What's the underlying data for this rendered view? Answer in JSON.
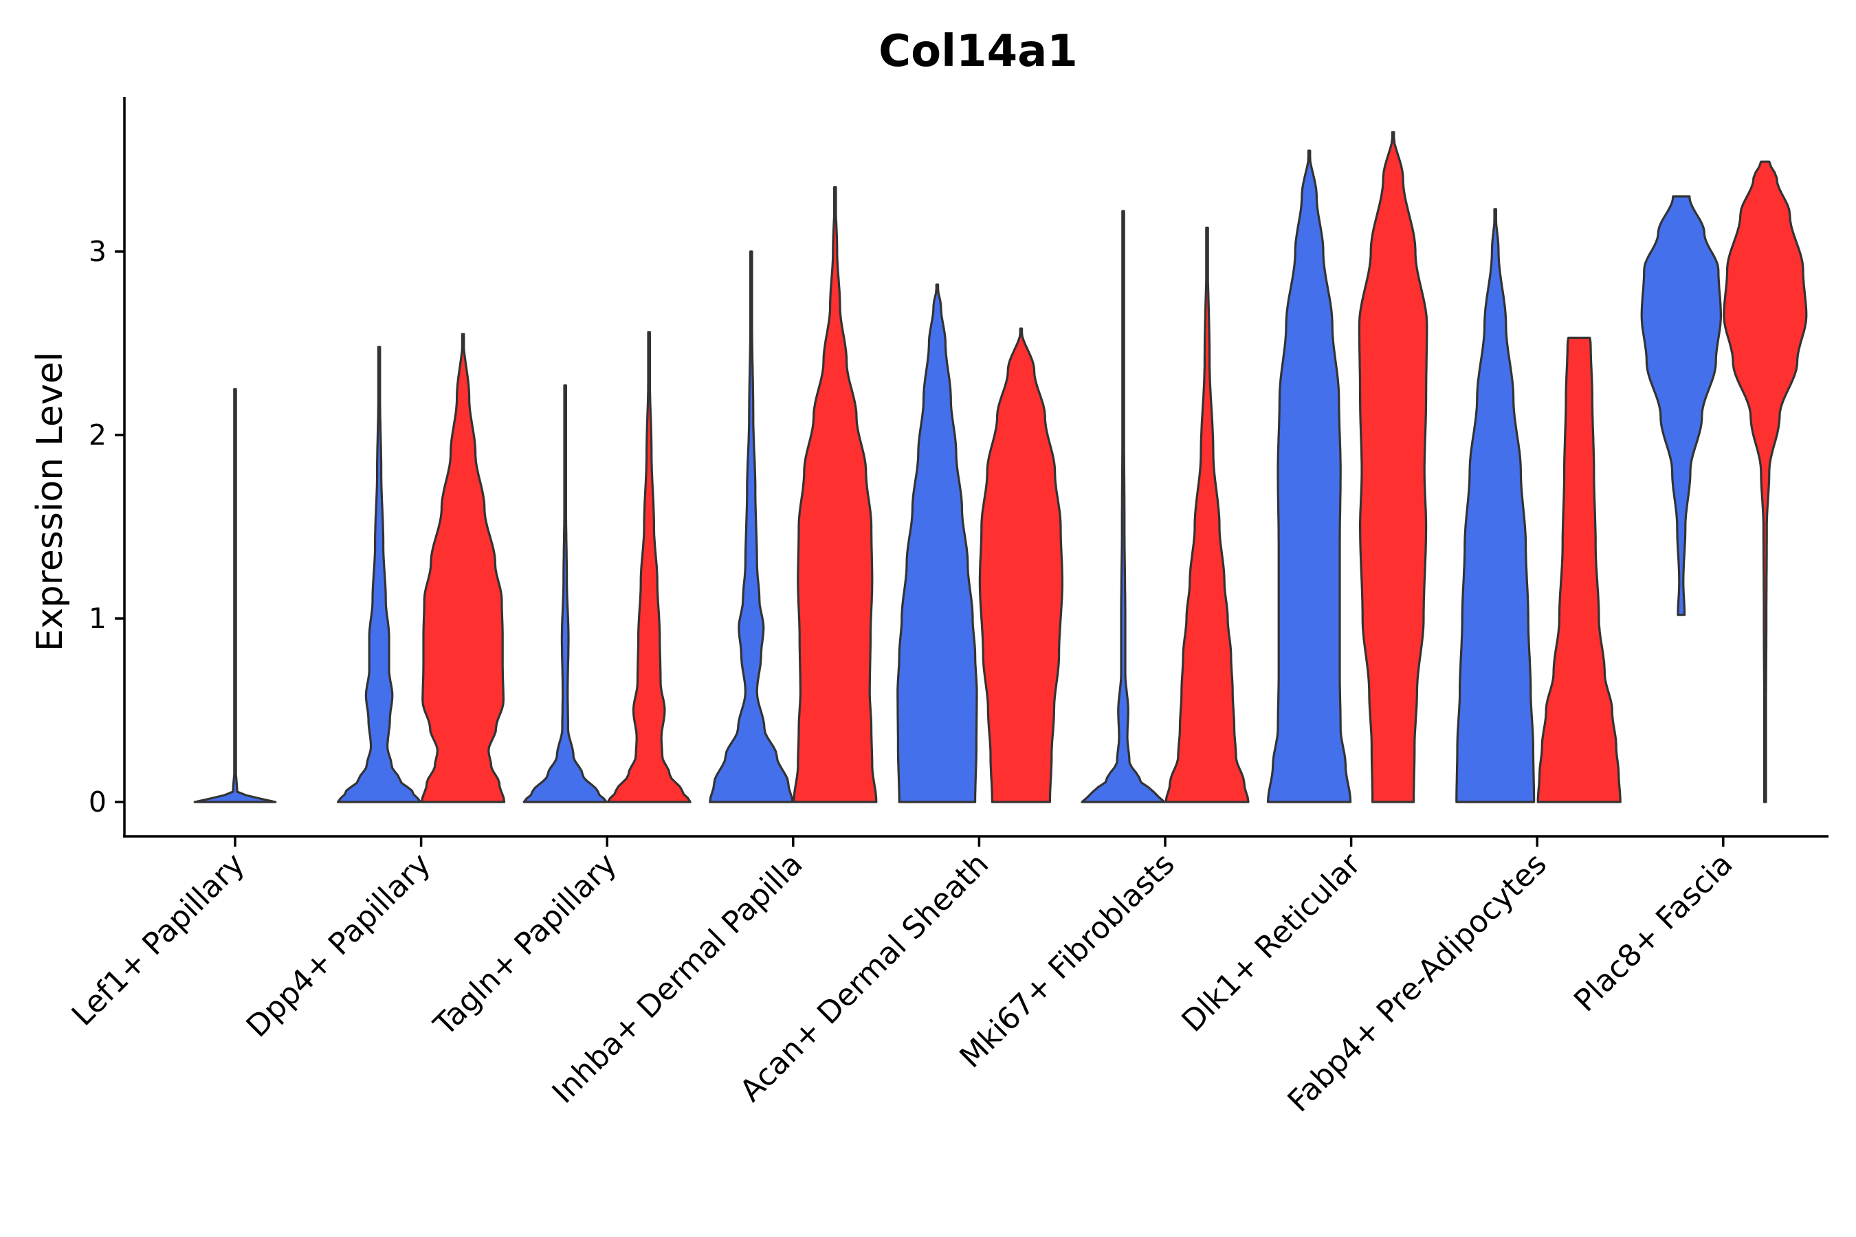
{
  "chart_data": {
    "type": "violin",
    "title": "Col14a1",
    "xlabel": "",
    "ylabel": "Expression Level",
    "ylim": [
      -0.18,
      3.85
    ],
    "yticks": [
      0,
      1,
      2,
      3
    ],
    "legend": "none",
    "grid": false,
    "group_colors": [
      "#4570EB",
      "#FF3030"
    ],
    "categories": [
      "Lef1+ Papillary",
      "Dpp4+ Papillary",
      "Tagln+ Papillary",
      "Inhba+ Dermal Papilla",
      "Acan+ Dermal Sheath",
      "Mki67+ Fibroblasts",
      "Dlk1+ Reticular",
      "Fabp4+ Pre-Adipocytes",
      "Plac8+ Fascia"
    ],
    "violins": [
      {
        "category": 0,
        "group": 0,
        "max": 2.25,
        "profile": [
          [
            0,
            0.98
          ],
          [
            0.02,
            0.6
          ],
          [
            0.05,
            0.05
          ],
          [
            0.2,
            0.01
          ],
          [
            0.6,
            0.008
          ],
          [
            1.0,
            0.005
          ],
          [
            1.6,
            0.004
          ],
          [
            2.25,
            0.002
          ]
        ]
      },
      {
        "category": 1,
        "group": 0,
        "max": 2.48,
        "profile": [
          [
            0,
            1.0
          ],
          [
            0.05,
            0.82
          ],
          [
            0.12,
            0.5
          ],
          [
            0.2,
            0.3
          ],
          [
            0.3,
            0.2
          ],
          [
            0.45,
            0.26
          ],
          [
            0.58,
            0.32
          ],
          [
            0.72,
            0.24
          ],
          [
            0.9,
            0.24
          ],
          [
            1.1,
            0.16
          ],
          [
            1.4,
            0.1
          ],
          [
            1.8,
            0.05
          ],
          [
            2.2,
            0.02
          ],
          [
            2.48,
            0.0
          ]
        ]
      },
      {
        "category": 1,
        "group": 1,
        "max": 2.55,
        "profile": [
          [
            0,
            1.0
          ],
          [
            0.1,
            0.88
          ],
          [
            0.2,
            0.68
          ],
          [
            0.28,
            0.62
          ],
          [
            0.4,
            0.8
          ],
          [
            0.55,
            0.98
          ],
          [
            0.75,
            0.96
          ],
          [
            0.9,
            0.96
          ],
          [
            1.1,
            0.94
          ],
          [
            1.3,
            0.78
          ],
          [
            1.6,
            0.52
          ],
          [
            1.9,
            0.3
          ],
          [
            2.2,
            0.15
          ],
          [
            2.55,
            0.0
          ]
        ]
      },
      {
        "category": 2,
        "group": 0,
        "max": 2.27,
        "profile": [
          [
            0,
            1.0
          ],
          [
            0.05,
            0.8
          ],
          [
            0.15,
            0.42
          ],
          [
            0.25,
            0.2
          ],
          [
            0.4,
            0.07
          ],
          [
            0.6,
            0.06
          ],
          [
            0.9,
            0.08
          ],
          [
            1.2,
            0.04
          ],
          [
            1.6,
            0.02
          ],
          [
            2.27,
            0.0
          ]
        ]
      },
      {
        "category": 2,
        "group": 1,
        "max": 2.56,
        "profile": [
          [
            0,
            1.0
          ],
          [
            0.06,
            0.8
          ],
          [
            0.15,
            0.5
          ],
          [
            0.25,
            0.32
          ],
          [
            0.35,
            0.3
          ],
          [
            0.5,
            0.38
          ],
          [
            0.65,
            0.28
          ],
          [
            0.9,
            0.26
          ],
          [
            1.2,
            0.2
          ],
          [
            1.5,
            0.12
          ],
          [
            1.9,
            0.06
          ],
          [
            2.3,
            0.02
          ],
          [
            2.56,
            0.0
          ]
        ]
      },
      {
        "category": 3,
        "group": 0,
        "max": 3.0,
        "profile": [
          [
            0,
            1.0
          ],
          [
            0.1,
            0.9
          ],
          [
            0.25,
            0.62
          ],
          [
            0.4,
            0.32
          ],
          [
            0.6,
            0.14
          ],
          [
            0.8,
            0.24
          ],
          [
            0.95,
            0.3
          ],
          [
            1.1,
            0.2
          ],
          [
            1.3,
            0.14
          ],
          [
            1.7,
            0.1
          ],
          [
            2.1,
            0.05
          ],
          [
            2.6,
            0.02
          ],
          [
            3.0,
            0.0
          ]
        ]
      },
      {
        "category": 3,
        "group": 1,
        "max": 3.35,
        "profile": [
          [
            0,
            1.0
          ],
          [
            0.2,
            0.9
          ],
          [
            0.4,
            0.88
          ],
          [
            0.6,
            0.84
          ],
          [
            0.9,
            0.86
          ],
          [
            1.2,
            0.9
          ],
          [
            1.5,
            0.88
          ],
          [
            1.8,
            0.75
          ],
          [
            2.1,
            0.52
          ],
          [
            2.4,
            0.28
          ],
          [
            2.7,
            0.12
          ],
          [
            3.0,
            0.05
          ],
          [
            3.35,
            0.0
          ]
        ]
      },
      {
        "category": 4,
        "group": 0,
        "max": 2.82,
        "profile": [
          [
            0,
            0.92
          ],
          [
            0.3,
            0.95
          ],
          [
            0.6,
            0.96
          ],
          [
            0.8,
            0.92
          ],
          [
            1.0,
            0.86
          ],
          [
            1.3,
            0.74
          ],
          [
            1.6,
            0.6
          ],
          [
            1.9,
            0.46
          ],
          [
            2.2,
            0.33
          ],
          [
            2.5,
            0.2
          ],
          [
            2.7,
            0.09
          ],
          [
            2.82,
            0.0
          ]
        ]
      },
      {
        "category": 4,
        "group": 1,
        "max": 2.58,
        "profile": [
          [
            0,
            0.7
          ],
          [
            0.25,
            0.74
          ],
          [
            0.5,
            0.8
          ],
          [
            0.8,
            0.92
          ],
          [
            1.2,
            1.0
          ],
          [
            1.5,
            0.96
          ],
          [
            1.8,
            0.82
          ],
          [
            2.1,
            0.58
          ],
          [
            2.35,
            0.32
          ],
          [
            2.58,
            0.0
          ]
        ]
      },
      {
        "category": 5,
        "group": 0,
        "max": 3.22,
        "profile": [
          [
            0,
            1.0
          ],
          [
            0.05,
            0.75
          ],
          [
            0.12,
            0.4
          ],
          [
            0.22,
            0.15
          ],
          [
            0.35,
            0.1
          ],
          [
            0.5,
            0.12
          ],
          [
            0.7,
            0.05
          ],
          [
            1.0,
            0.05
          ],
          [
            1.5,
            0.03
          ],
          [
            2.2,
            0.015
          ],
          [
            3.22,
            0.0
          ]
        ]
      },
      {
        "category": 5,
        "group": 1,
        "max": 3.13,
        "profile": [
          [
            0,
            1.0
          ],
          [
            0.1,
            0.9
          ],
          [
            0.25,
            0.7
          ],
          [
            0.4,
            0.66
          ],
          [
            0.6,
            0.62
          ],
          [
            0.8,
            0.58
          ],
          [
            1.0,
            0.5
          ],
          [
            1.2,
            0.42
          ],
          [
            1.5,
            0.3
          ],
          [
            1.9,
            0.15
          ],
          [
            2.4,
            0.06
          ],
          [
            3.13,
            0.0
          ]
        ]
      },
      {
        "category": 6,
        "group": 0,
        "max": 3.55,
        "profile": [
          [
            0,
            1.0
          ],
          [
            0.2,
            0.88
          ],
          [
            0.4,
            0.76
          ],
          [
            0.7,
            0.74
          ],
          [
            1.0,
            0.74
          ],
          [
            1.4,
            0.74
          ],
          [
            1.8,
            0.76
          ],
          [
            2.2,
            0.72
          ],
          [
            2.6,
            0.56
          ],
          [
            3.0,
            0.34
          ],
          [
            3.3,
            0.18
          ],
          [
            3.55,
            0.0
          ]
        ]
      },
      {
        "category": 6,
        "group": 1,
        "max": 3.65,
        "profile": [
          [
            0,
            0.5
          ],
          [
            0.3,
            0.52
          ],
          [
            0.6,
            0.58
          ],
          [
            1.0,
            0.74
          ],
          [
            1.5,
            0.8
          ],
          [
            1.8,
            0.76
          ],
          [
            2.2,
            0.8
          ],
          [
            2.6,
            0.82
          ],
          [
            3.0,
            0.54
          ],
          [
            3.4,
            0.24
          ],
          [
            3.65,
            0.0
          ]
        ]
      },
      {
        "category": 7,
        "group": 0,
        "max": 3.23,
        "profile": [
          [
            0,
            0.94
          ],
          [
            0.3,
            0.92
          ],
          [
            0.6,
            0.86
          ],
          [
            1.0,
            0.8
          ],
          [
            1.4,
            0.74
          ],
          [
            1.8,
            0.62
          ],
          [
            2.2,
            0.44
          ],
          [
            2.6,
            0.26
          ],
          [
            3.0,
            0.08
          ],
          [
            3.23,
            0.0
          ]
        ]
      },
      {
        "category": 7,
        "group": 1,
        "max": 2.53,
        "profile": [
          [
            0,
            1.0
          ],
          [
            0.15,
            0.96
          ],
          [
            0.3,
            0.9
          ],
          [
            0.5,
            0.8
          ],
          [
            0.7,
            0.62
          ],
          [
            1.0,
            0.48
          ],
          [
            1.4,
            0.4
          ],
          [
            1.8,
            0.36
          ],
          [
            2.2,
            0.32
          ],
          [
            2.5,
            0.28
          ],
          [
            2.53,
            0.26
          ]
        ]
      },
      {
        "category": 8,
        "group": 0,
        "max": 3.3,
        "profile": [
          [
            1.02,
            0.08
          ],
          [
            1.2,
            0.05
          ],
          [
            1.5,
            0.1
          ],
          [
            1.8,
            0.22
          ],
          [
            2.1,
            0.5
          ],
          [
            2.4,
            0.84
          ],
          [
            2.65,
            0.96
          ],
          [
            2.9,
            0.9
          ],
          [
            3.1,
            0.56
          ],
          [
            3.3,
            0.2
          ]
        ]
      },
      {
        "category": 8,
        "group": 1,
        "max": 3.49,
        "profile": [
          [
            0,
            0.005
          ],
          [
            0.5,
            0.02
          ],
          [
            1.0,
            0.03
          ],
          [
            1.5,
            0.04
          ],
          [
            1.8,
            0.1
          ],
          [
            2.1,
            0.35
          ],
          [
            2.4,
            0.78
          ],
          [
            2.65,
            1.0
          ],
          [
            2.9,
            0.92
          ],
          [
            3.2,
            0.6
          ],
          [
            3.4,
            0.28
          ],
          [
            3.49,
            0.1
          ]
        ]
      }
    ]
  }
}
